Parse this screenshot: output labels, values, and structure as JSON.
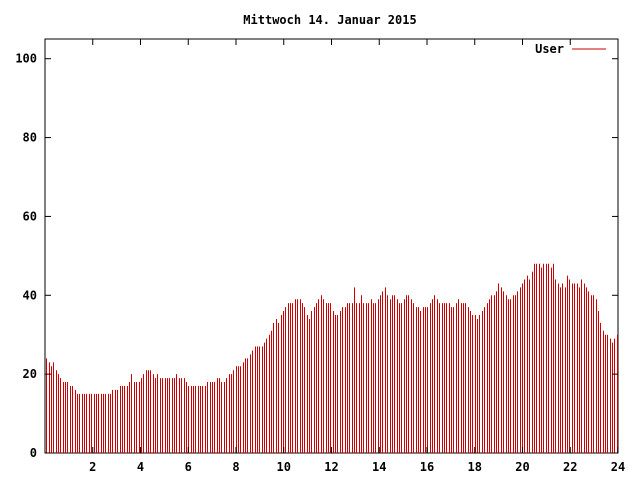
{
  "chart_data": {
    "type": "bar",
    "title": "Mittwoch 14. Januar 2015",
    "xlabel": "",
    "ylabel": "",
    "xlim": [
      0,
      24
    ],
    "ylim": [
      0,
      105
    ],
    "x_ticks": [
      2,
      4,
      6,
      8,
      10,
      12,
      14,
      16,
      18,
      20,
      22,
      24
    ],
    "y_ticks": [
      0,
      20,
      40,
      60,
      80,
      100
    ],
    "grid": false,
    "legend_position": "top-right",
    "bar_color": "#cc0000",
    "series": [
      {
        "name": "User",
        "values": [
          24,
          23,
          22,
          23,
          21,
          20,
          19,
          18,
          18,
          18,
          17,
          17,
          16,
          15,
          15,
          15,
          15,
          15,
          15,
          15,
          15,
          15,
          15,
          15,
          15,
          15,
          15,
          15,
          16,
          16,
          16,
          17,
          17,
          17,
          17,
          18,
          20,
          18,
          18,
          18,
          19,
          20,
          21,
          21,
          21,
          20,
          19,
          20,
          19,
          19,
          19,
          19,
          19,
          19,
          19,
          20,
          19,
          19,
          19,
          18,
          17,
          17,
          17,
          17,
          17,
          17,
          17,
          17,
          18,
          18,
          18,
          18,
          19,
          19,
          18,
          18,
          19,
          20,
          20,
          21,
          22,
          22,
          22,
          23,
          24,
          24,
          25,
          26,
          27,
          27,
          27,
          27,
          28,
          29,
          30,
          31,
          33,
          34,
          33,
          35,
          36,
          37,
          38,
          38,
          38,
          39,
          39,
          39,
          38,
          37,
          35,
          34,
          36,
          37,
          38,
          39,
          40,
          39,
          38,
          38,
          38,
          36,
          35,
          35,
          36,
          37,
          37,
          38,
          38,
          38,
          42,
          38,
          38,
          40,
          38,
          38,
          38,
          39,
          38,
          38,
          39,
          40,
          41,
          42,
          40,
          39,
          40,
          40,
          39,
          38,
          38,
          39,
          40,
          40,
          39,
          38,
          37,
          37,
          36,
          37,
          37,
          37,
          38,
          39,
          40,
          39,
          38,
          38,
          38,
          38,
          38,
          37,
          37,
          38,
          39,
          38,
          38,
          38,
          37,
          36,
          35,
          35,
          34,
          35,
          36,
          37,
          38,
          39,
          40,
          40,
          41,
          43,
          42,
          41,
          40,
          39,
          39,
          40,
          40,
          41,
          42,
          43,
          44,
          45,
          44,
          46,
          48,
          48,
          48,
          47,
          48,
          48,
          48,
          47,
          48,
          44,
          43,
          42,
          43,
          42,
          45,
          44,
          43,
          43,
          43,
          42,
          44,
          43,
          42,
          41,
          40,
          40,
          39,
          36,
          33,
          31,
          30,
          30,
          29,
          28,
          29,
          30
        ]
      }
    ]
  }
}
